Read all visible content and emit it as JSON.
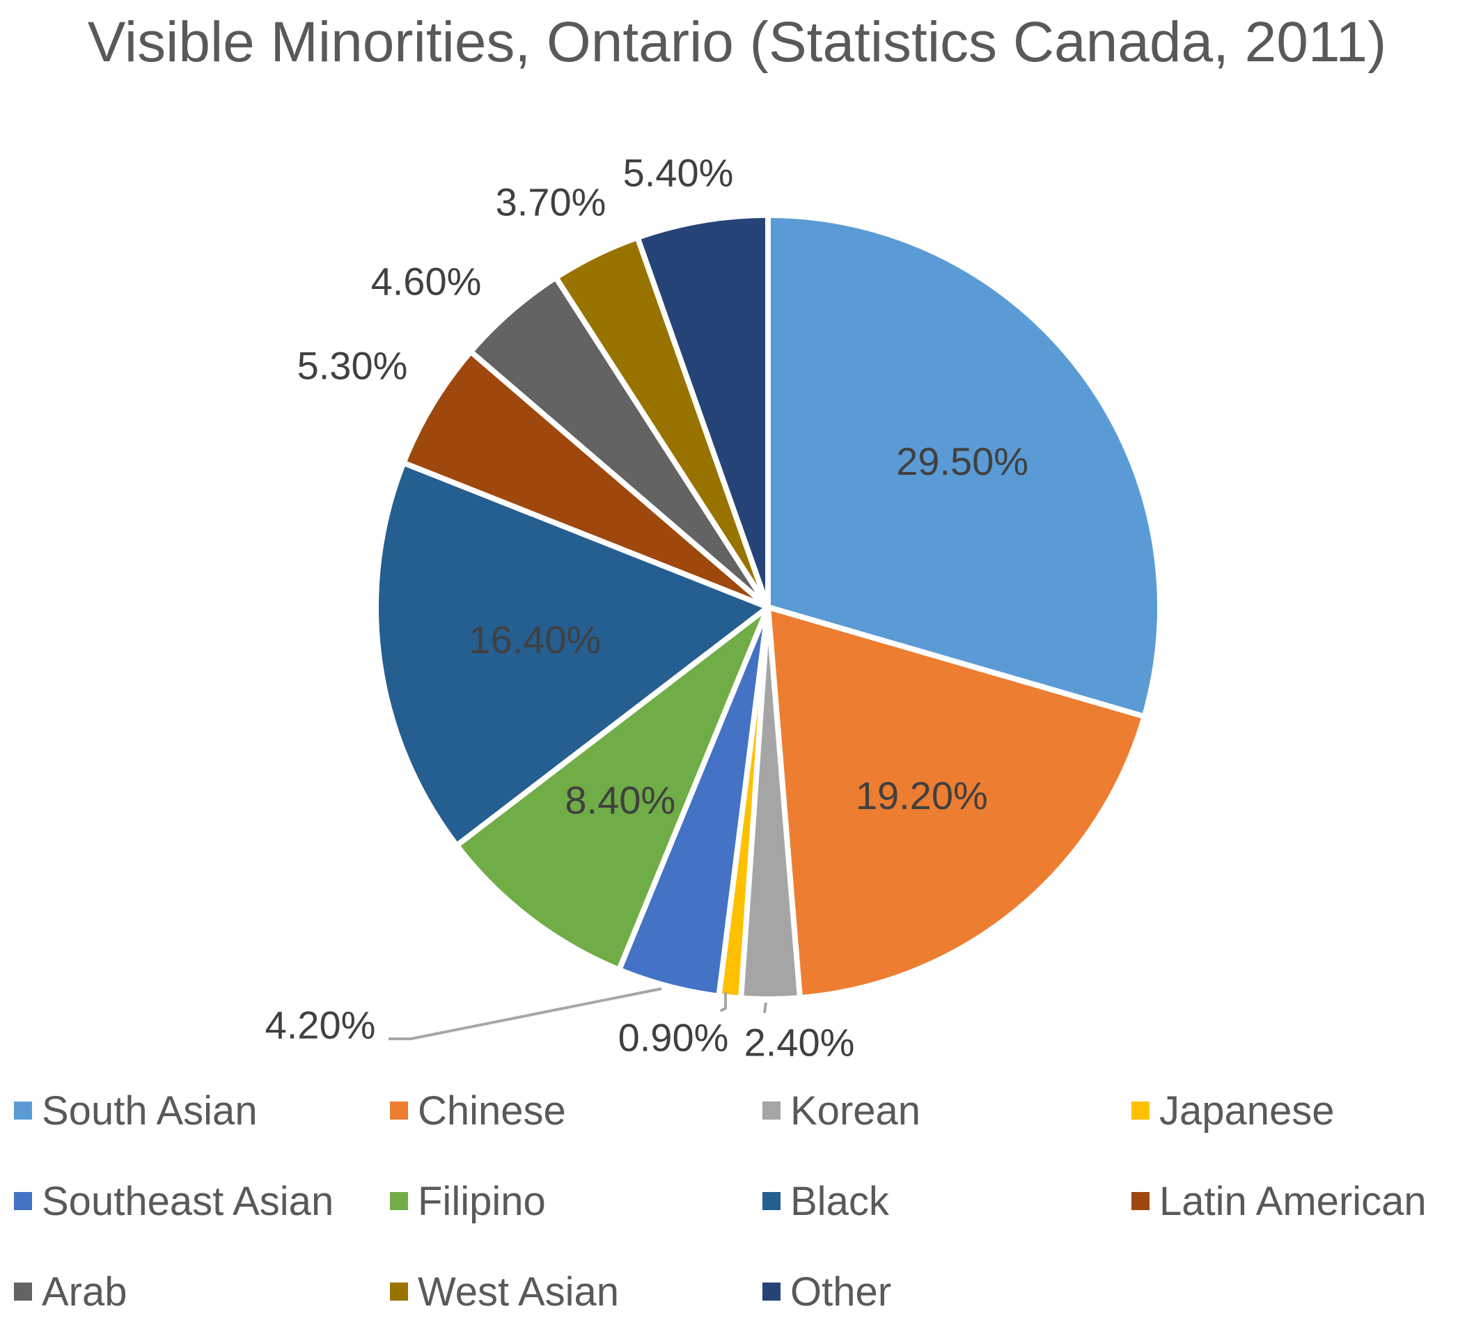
{
  "chart_data": {
    "type": "pie",
    "title": "Visible Minorities, Ontario (Statistics Canada, 2011)",
    "slices": [
      {
        "name": "South Asian",
        "value": 29.5,
        "label": "29.50%",
        "color": "#5B9BD5"
      },
      {
        "name": "Chinese",
        "value": 19.2,
        "label": "19.20%",
        "color": "#ED7D31"
      },
      {
        "name": "Korean",
        "value": 2.4,
        "label": "2.40%",
        "color": "#A5A5A5"
      },
      {
        "name": "Japanese",
        "value": 0.9,
        "label": "0.90%",
        "color": "#FFC000"
      },
      {
        "name": "Southeast Asian",
        "value": 4.2,
        "label": "4.20%",
        "color": "#4472C4"
      },
      {
        "name": "Filipino",
        "value": 8.4,
        "label": "8.40%",
        "color": "#70AD47"
      },
      {
        "name": "Black",
        "value": 16.4,
        "label": "16.40%",
        "color": "#255E91"
      },
      {
        "name": "Latin American",
        "value": 5.3,
        "label": "5.30%",
        "color": "#9E480E"
      },
      {
        "name": "Arab",
        "value": 4.6,
        "label": "4.60%",
        "color": "#636363"
      },
      {
        "name": "West Asian",
        "value": 3.7,
        "label": "3.70%",
        "color": "#997300"
      },
      {
        "name": "Other",
        "value": 5.4,
        "label": "5.40%",
        "color": "#264478"
      }
    ],
    "legend_position": "bottom"
  }
}
